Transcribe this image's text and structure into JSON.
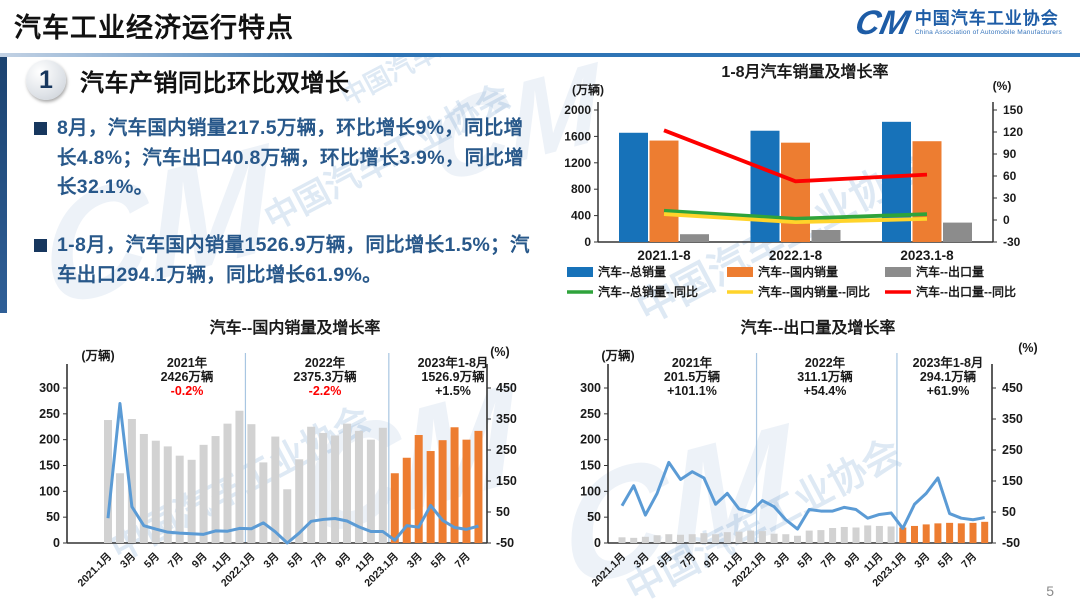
{
  "header": {
    "title": "汽车工业经济运行特点",
    "logo": {
      "mark": "CM",
      "cn": "中国汽车工业协会",
      "en": "China Association of Automobile Manufacturers"
    }
  },
  "section": {
    "number": "1",
    "title": "汽车产销同比环比双增长",
    "bullets": [
      "8月，汽车国内销量217.5万辆，环比增长9%，同比增长4.8%；汽车出口40.8万辆，环比增长3.9%，同比增长32.1%。",
      "1-8月，汽车国内销量1526.9万辆，同比增长1.5%；汽车出口294.1万辆，同比增长61.9%。"
    ]
  },
  "watermark": {
    "text": "中国汽车工业协会"
  },
  "footer": {
    "page_number": "5"
  },
  "chart_data": [
    {
      "id": "combo",
      "type": "bar",
      "title": "1-8月汽车销量及增长率",
      "left_axis": {
        "label": "(万辆)",
        "min": 0,
        "max": 2000,
        "ticks": [
          0,
          400,
          800,
          1200,
          1600,
          2000
        ]
      },
      "right_axis": {
        "label": "(%)",
        "min": -30,
        "max": 150,
        "ticks": [
          -30,
          0,
          30,
          60,
          90,
          120,
          150
        ]
      },
      "categories": [
        "2021.1-8",
        "2022.1-8",
        "2023.1-8"
      ],
      "bar_series": [
        {
          "name": "汽车--总销量",
          "color": "#1772b9",
          "values": [
            1655,
            1686,
            1821
          ]
        },
        {
          "name": "汽车--国内销量",
          "color": "#ed7d31",
          "values": [
            1537,
            1505,
            1527
          ]
        },
        {
          "name": "汽车--出口量",
          "color": "#8c8c8c",
          "values": [
            118,
            182,
            294
          ]
        }
      ],
      "line_series": [
        {
          "name": "汽车--总销量--同比",
          "color": "#2fa33b",
          "values": [
            12.6,
            1.7,
            8.0
          ]
        },
        {
          "name": "汽车--国内销量--同比",
          "color": "#ffd42a",
          "values": [
            8.1,
            -2.9,
            1.5
          ]
        },
        {
          "name": "汽车--出口量--同比",
          "color": "#fe0000",
          "values": [
            122.3,
            52.8,
            61.9
          ]
        }
      ],
      "legend_position": "bottom"
    },
    {
      "id": "domestic",
      "type": "bar+line",
      "title": "汽车--国内销量及增长率",
      "left_axis": {
        "label": "(万辆)",
        "min": 0,
        "max": 300,
        "ticks": [
          0,
          50,
          100,
          150,
          200,
          250,
          300
        ]
      },
      "right_axis": {
        "label": "(%)",
        "min": -50,
        "max": 450,
        "ticks": [
          -50,
          50,
          150,
          250,
          350,
          450
        ]
      },
      "x_labels": [
        "2021.1月",
        "3月",
        "5月",
        "7月",
        "9月",
        "11月",
        "2022.1月",
        "3月",
        "5月",
        "7月",
        "9月",
        "11月",
        "2023.1月",
        "3月",
        "5月",
        "7月"
      ],
      "annotations": [
        {
          "year": "2021年",
          "total": "2426万辆",
          "growth": "-0.2%",
          "growth_color": "#fe0000"
        },
        {
          "year": "2022年",
          "total": "2375.3万辆",
          "growth": "-2.2%",
          "growth_color": "#fe0000"
        },
        {
          "year": "2023年1-8月",
          "total": "1526.9万辆",
          "growth": "+1.5%",
          "growth_color": "#1a1a1a"
        }
      ],
      "bar_color_default": "#d2d2d2",
      "bar_color_highlight": "#ed7d31",
      "highlight_from": 24,
      "separators_at": [
        12,
        24
      ],
      "bar_values": [
        238,
        135,
        240,
        211,
        198,
        187,
        169,
        161,
        190,
        207,
        231,
        256,
        230,
        156,
        206,
        104,
        162,
        225,
        213,
        208,
        231,
        217,
        200,
        223,
        135,
        165,
        209,
        178,
        199,
        224,
        200,
        217
      ],
      "line": {
        "name": "同比增长率",
        "color": "#5b9bd5",
        "values": [
          30,
          400,
          67,
          6,
          -5,
          -15,
          -18,
          -20,
          -22,
          -11,
          -12,
          -3,
          -4,
          15,
          -14,
          -50,
          -18,
          20,
          26,
          29,
          21,
          2,
          -13,
          -13,
          -41,
          6,
          1,
          71,
          23,
          0,
          -6,
          4.8
        ]
      }
    },
    {
      "id": "export",
      "type": "bar+line",
      "title": "汽车--出口量及增长率",
      "left_axis": {
        "label": "(万辆)",
        "min": 0,
        "max": 300,
        "ticks": [
          0,
          50,
          100,
          150,
          200,
          250,
          300
        ]
      },
      "right_axis": {
        "label": "(%)",
        "min": -50,
        "max": 450,
        "ticks": [
          -50,
          50,
          150,
          250,
          350,
          450
        ]
      },
      "x_labels": [
        "2021.1月",
        "3月",
        "5月",
        "7月",
        "9月",
        "11月",
        "2022.1月",
        "3月",
        "5月",
        "7月",
        "9月",
        "11月",
        "2023.1月",
        "3月",
        "5月",
        "7月"
      ],
      "annotations": [
        {
          "year": "2021年",
          "total": "201.5万辆",
          "growth": "+101.1%",
          "growth_color": "#1a1a1a"
        },
        {
          "year": "2022年",
          "total": "311.1万辆",
          "growth": "+54.4%",
          "growth_color": "#1a1a1a"
        },
        {
          "year": "2023年1-8月",
          "total": "294.1万辆",
          "growth": "+61.9%",
          "growth_color": "#1a1a1a"
        }
      ],
      "bar_color_default": "#d2d2d2",
      "bar_color_highlight": "#ed7d31",
      "highlight_from": 24,
      "separators_at": [
        12,
        24
      ],
      "bar_values": [
        11,
        10,
        12,
        15,
        17,
        16,
        17,
        19,
        17,
        21,
        22,
        24,
        23,
        18,
        17,
        14,
        24,
        25,
        29,
        31,
        30,
        34,
        33,
        32,
        30,
        33,
        36,
        38,
        39,
        38,
        39,
        41
      ],
      "line": {
        "name": "同比增长率",
        "color": "#5b9bd5",
        "values": [
          70,
          135,
          40,
          110,
          210,
          155,
          180,
          160,
          75,
          110,
          60,
          50,
          87,
          67,
          25,
          -5,
          58,
          53,
          53,
          65,
          58,
          30,
          42,
          47,
          -3,
          75,
          110,
          160,
          45,
          30,
          25,
          32
        ]
      }
    }
  ]
}
